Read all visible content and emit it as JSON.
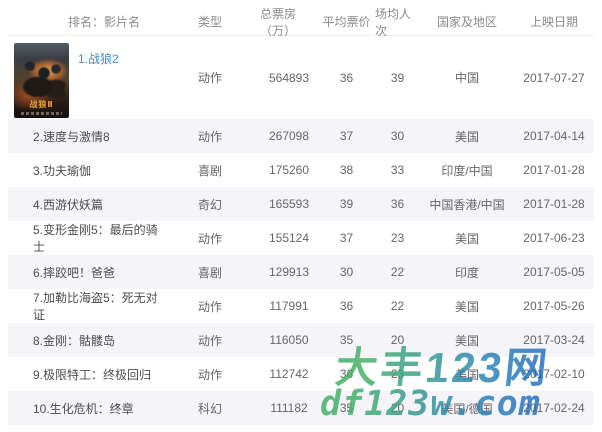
{
  "table": {
    "headers": {
      "rank_title": "排名：影片名",
      "type": "类型",
      "box_office": "总票房（万）",
      "avg_price": "平均票价",
      "avg_attendance": "场均人次",
      "region": "国家及地区",
      "release_date": "上映日期"
    },
    "movies": [
      {
        "rank_title": "1.战狼2",
        "type": "动作",
        "box_office": 564893,
        "avg_price": 36,
        "avg_attendance": 39,
        "region": "中国",
        "release_date": "2017-07-27"
      },
      {
        "rank_title": "2.速度与激情8",
        "type": "动作",
        "box_office": 267098,
        "avg_price": 37,
        "avg_attendance": 30,
        "region": "美国",
        "release_date": "2017-04-14"
      },
      {
        "rank_title": "3.功夫瑜伽",
        "type": "喜剧",
        "box_office": 175260,
        "avg_price": 38,
        "avg_attendance": 33,
        "region": "印度/中国",
        "release_date": "2017-01-28"
      },
      {
        "rank_title": "4.西游伏妖篇",
        "type": "奇幻",
        "box_office": 165593,
        "avg_price": 39,
        "avg_attendance": 36,
        "region": "中国香港/中国",
        "release_date": "2017-01-28"
      },
      {
        "rank_title": "5.变形金刚5：最后的骑士",
        "type": "动作",
        "box_office": 155124,
        "avg_price": 37,
        "avg_attendance": 23,
        "region": "美国",
        "release_date": "2017-06-23"
      },
      {
        "rank_title": "6.摔跤吧！爸爸",
        "type": "喜剧",
        "box_office": 129913,
        "avg_price": 30,
        "avg_attendance": 22,
        "region": "印度",
        "release_date": "2017-05-05"
      },
      {
        "rank_title": "7.加勒比海盗5：死无对证",
        "type": "动作",
        "box_office": 117991,
        "avg_price": 36,
        "avg_attendance": 22,
        "region": "美国",
        "release_date": "2017-05-26"
      },
      {
        "rank_title": "8.金刚：骷髅岛",
        "type": "动作",
        "box_office": 116050,
        "avg_price": 35,
        "avg_attendance": 20,
        "region": "美国",
        "release_date": "2017-03-24"
      },
      {
        "rank_title": "9.极限特工：终极回归",
        "type": "动作",
        "box_office": 112742,
        "avg_price": 36,
        "avg_attendance": 23,
        "region": "美国",
        "release_date": "2017-02-10"
      },
      {
        "rank_title": "10.生化危机：终章",
        "type": "科幻",
        "box_office": 111182,
        "avg_price": 35,
        "avg_attendance": 20,
        "region": "美国/德国",
        "release_date": "2017-02-24"
      }
    ]
  },
  "poster": {
    "caption": "战狼Ⅱ"
  },
  "watermarks": {
    "brand_cn": "大丰123网",
    "brand_domain": "df123w.com",
    "green": "#3fae62",
    "blue": "#1f6fc0"
  },
  "colors": {
    "row_alt_bg": "#f4f4f9",
    "link_blue": "#3e8ed0",
    "header_text": "#8a8a8a",
    "body_text": "#666666"
  }
}
